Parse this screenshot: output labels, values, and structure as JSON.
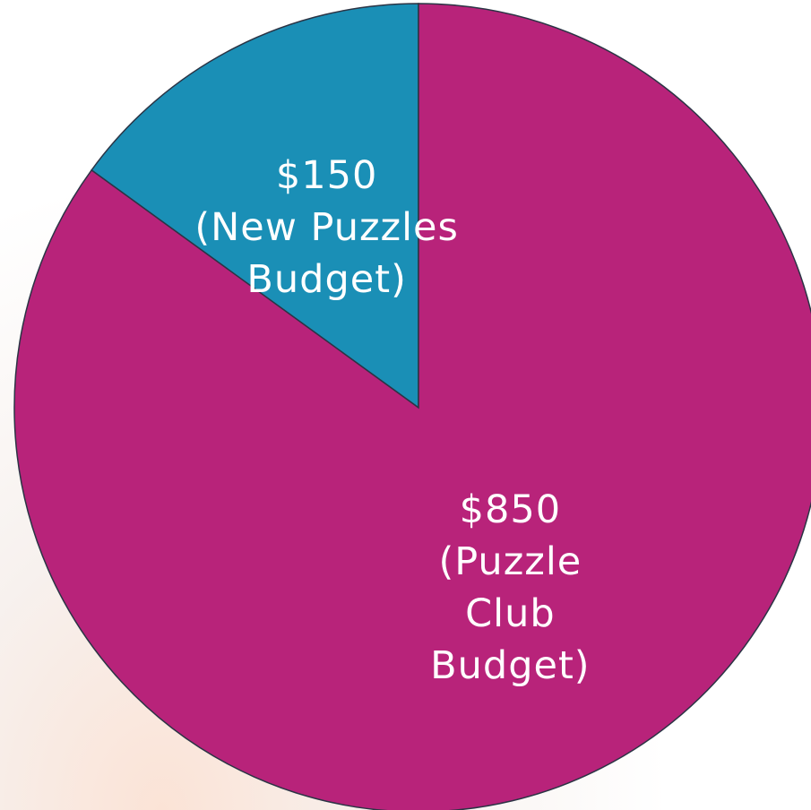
{
  "chart_data": {
    "type": "pie",
    "categories": [
      "(New Puzzles Budget)",
      "(Puzzle Club Budget)"
    ],
    "values": [
      150,
      850
    ],
    "value_labels": [
      "$150",
      "$850"
    ],
    "colors": [
      "#1a8fb6",
      "#b8237a"
    ]
  }
}
